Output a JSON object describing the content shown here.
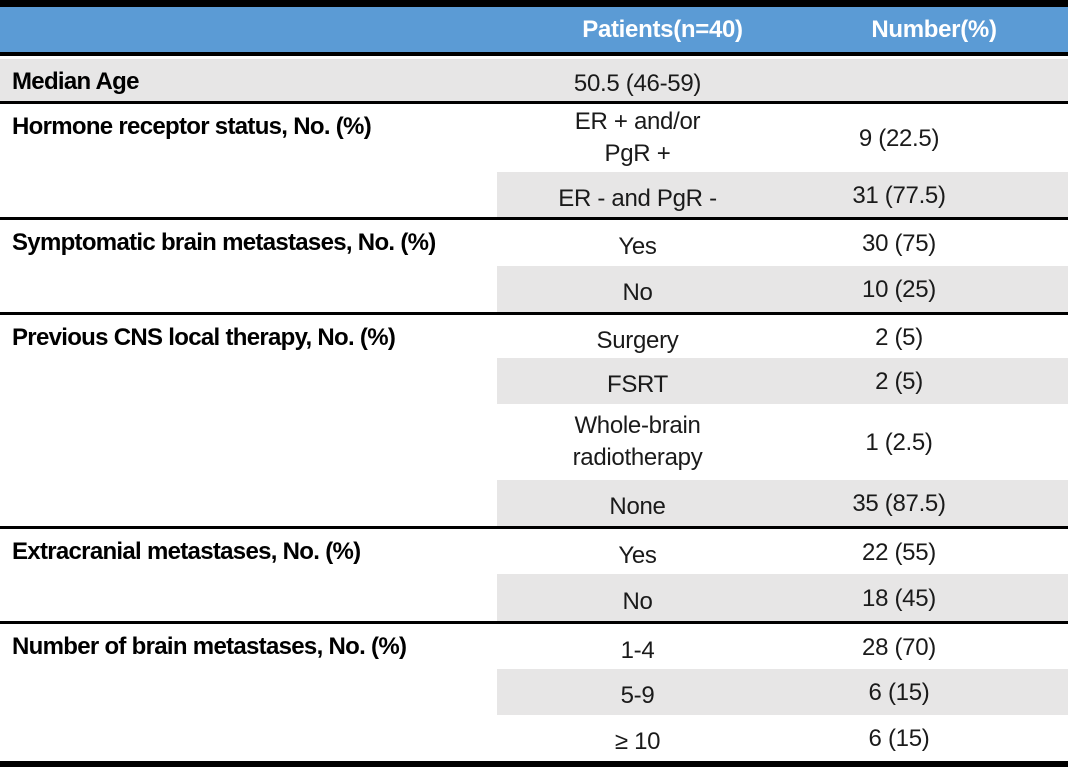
{
  "table": {
    "accent_color": "#5B9BD5",
    "band_color": "#E7E6E6",
    "line_color": "#000000",
    "header": {
      "patients": "Patients(n=40)",
      "number": "Number(%)"
    },
    "sections": [
      {
        "label": "Median Age",
        "rows": [
          {
            "patients": "50.5 (46-59)",
            "number": ""
          }
        ]
      },
      {
        "label": "Hormone receptor status, No. (%)",
        "rows": [
          {
            "patients": "ER + and/or\nPgR +",
            "number": "9 (22.5)"
          },
          {
            "patients": "ER - and PgR -",
            "number": "31 (77.5)"
          }
        ]
      },
      {
        "label": "Symptomatic brain metastases, No. (%)",
        "rows": [
          {
            "patients": "Yes",
            "number": "30 (75)"
          },
          {
            "patients": "No",
            "number": "10 (25)"
          }
        ]
      },
      {
        "label": "Previous CNS local therapy, No. (%)",
        "rows": [
          {
            "patients": "Surgery",
            "number": "2 (5)"
          },
          {
            "patients": "FSRT",
            "number": "2 (5)"
          },
          {
            "patients": "Whole-brain\nradiotherapy",
            "number": "1 (2.5)"
          },
          {
            "patients": "None",
            "number": "35 (87.5)"
          }
        ]
      },
      {
        "label": "Extracranial metastases, No. (%)",
        "rows": [
          {
            "patients": "Yes",
            "number": "22 (55)"
          },
          {
            "patients": "No",
            "number": "18 (45)"
          }
        ]
      },
      {
        "label": "Number of brain metastases, No. (%)",
        "rows": [
          {
            "patients": "1-4",
            "number": "28 (70)"
          },
          {
            "patients": "5-9",
            "number": "6 (15)"
          },
          {
            "patients": "≥ 10",
            "number": "6 (15)"
          }
        ]
      }
    ]
  },
  "chart_data": {
    "type": "table",
    "columns": [
      "",
      "Patients(n=40)",
      "Number(%)"
    ],
    "rows": [
      [
        "Median Age",
        "50.5 (46-59)",
        ""
      ],
      [
        "Hormone receptor status, No. (%)",
        "ER + and/or PgR +",
        "9 (22.5)"
      ],
      [
        "",
        "ER - and PgR -",
        "31 (77.5)"
      ],
      [
        "Symptomatic brain metastases, No. (%)",
        "Yes",
        "30 (75)"
      ],
      [
        "",
        "No",
        "10 (25)"
      ],
      [
        "Previous CNS local therapy, No. (%)",
        "Surgery",
        "2 (5)"
      ],
      [
        "",
        "FSRT",
        "2 (5)"
      ],
      [
        "",
        "Whole-brain radiotherapy",
        "1 (2.5)"
      ],
      [
        "",
        "None",
        "35 (87.5)"
      ],
      [
        "Extracranial metastases, No. (%)",
        "Yes",
        "22 (55)"
      ],
      [
        "",
        "No",
        "18 (45)"
      ],
      [
        "Number of brain metastases, No. (%)",
        "1-4",
        "28 (70)"
      ],
      [
        "",
        "5-9",
        "6 (15)"
      ],
      [
        "",
        "≥ 10",
        "6 (15)"
      ]
    ]
  }
}
